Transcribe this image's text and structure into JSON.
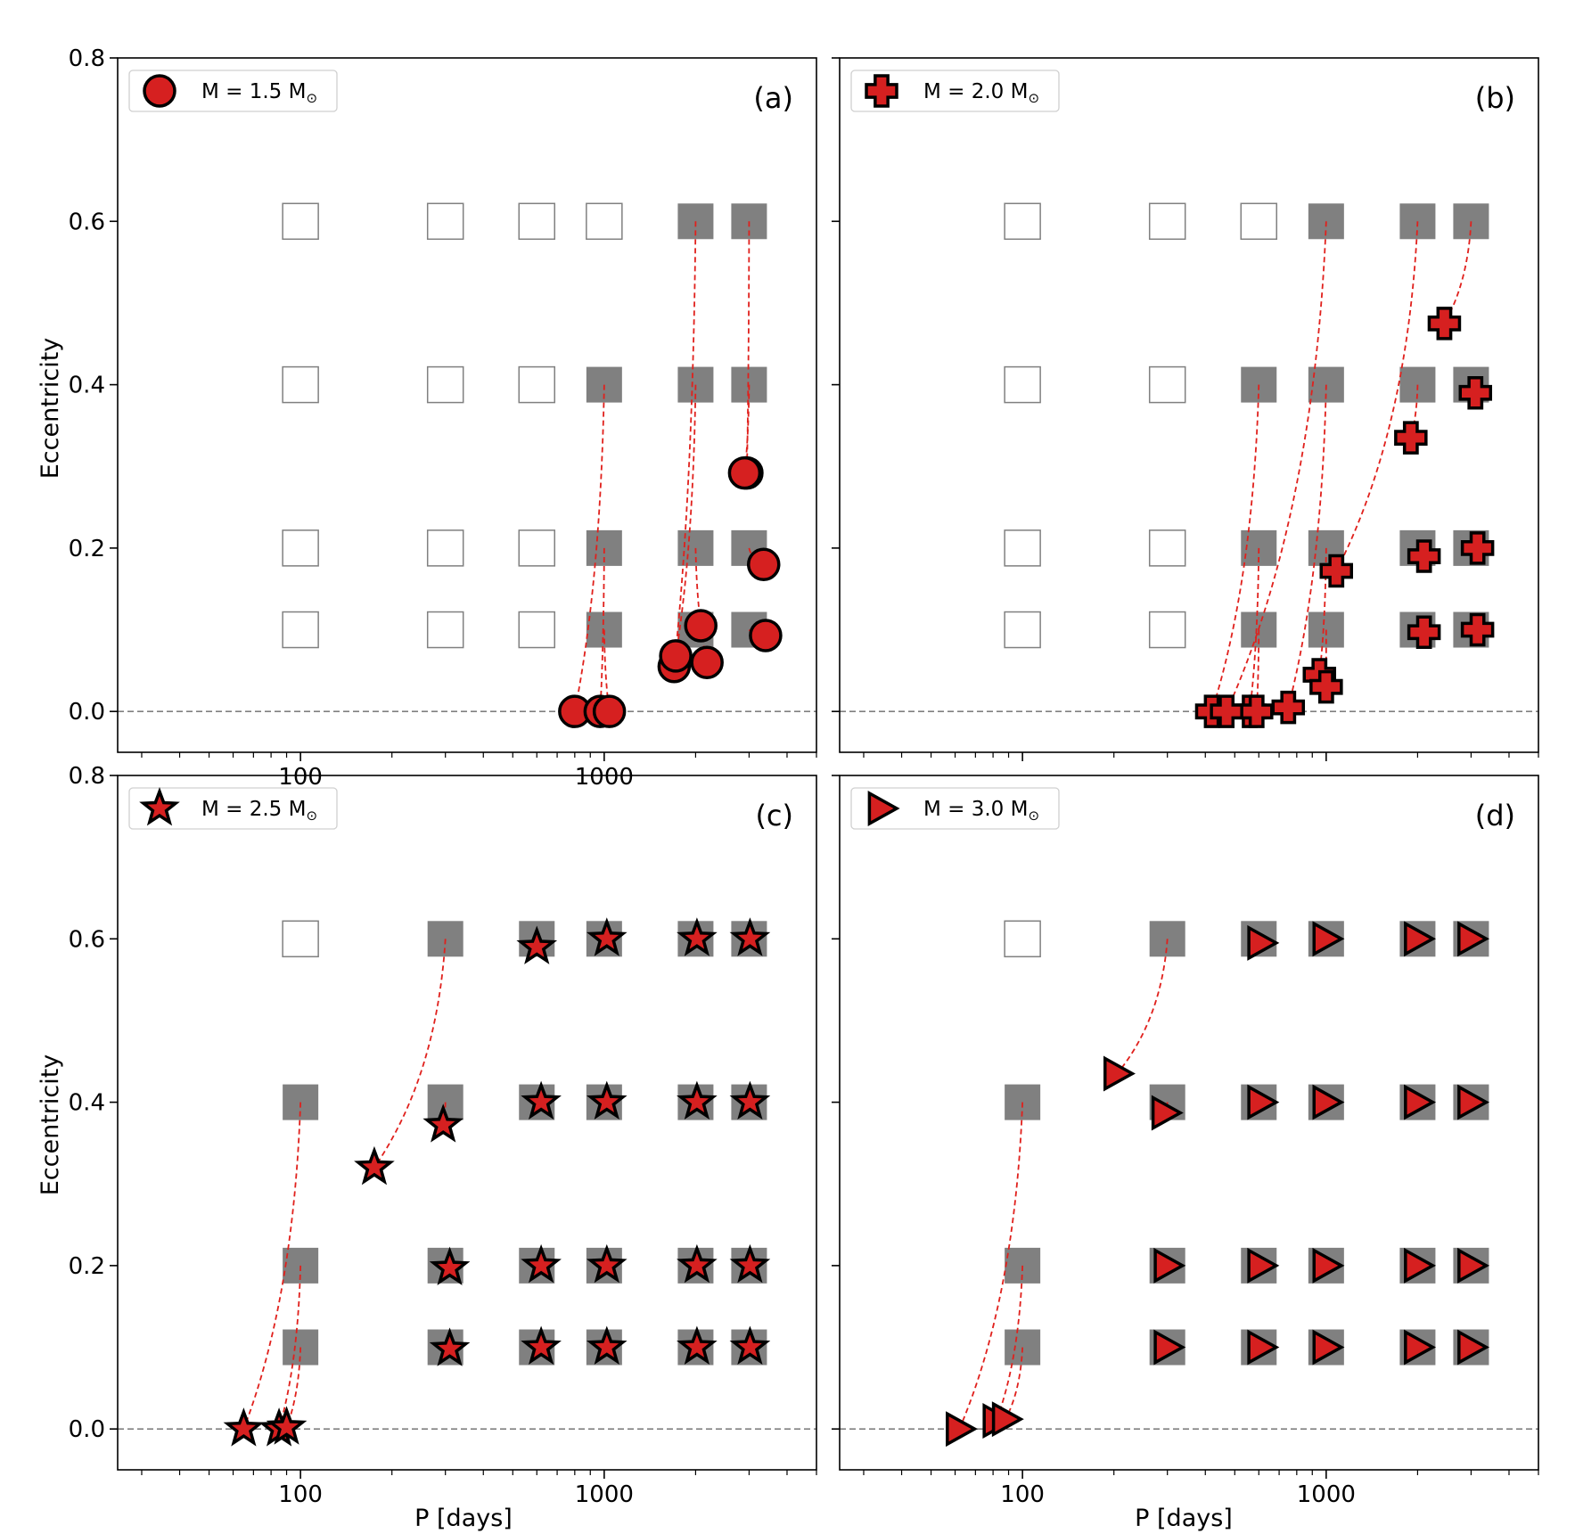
{
  "figure": {
    "xlabel": "P [days]",
    "ylabel": "Eccentricity"
  },
  "chart_data": [
    {
      "type": "scatter",
      "panel_label": "(a)",
      "legend": {
        "prefix": "M = 1.5 M",
        "subscript": "⊙",
        "placement": "top-left"
      },
      "marker": "circle",
      "x_scale": "log",
      "xlim": [
        25,
        5000
      ],
      "ylim": [
        -0.05,
        0.8
      ],
      "xticks": [
        {
          "value": 100,
          "label": "100"
        },
        {
          "value": 1000,
          "label": "1000"
        }
      ],
      "yticks": [
        {
          "value": 0.0,
          "label": "0.0"
        },
        {
          "value": 0.2,
          "label": "0.2"
        },
        {
          "value": 0.4,
          "label": "0.4"
        },
        {
          "value": 0.6,
          "label": "0.6"
        },
        {
          "value": 0.8,
          "label": "0.8"
        }
      ],
      "reference_line_y": 0.0,
      "grid_periods": [
        100,
        300,
        600,
        1000,
        2000,
        3000
      ],
      "grid_eccentricities": [
        0.1,
        0.2,
        0.4,
        0.6
      ],
      "filled_initial": [
        [
          1000,
          0.1
        ],
        [
          1000,
          0.2
        ],
        [
          1000,
          0.4
        ],
        [
          2000,
          0.1
        ],
        [
          2000,
          0.2
        ],
        [
          2000,
          0.4
        ],
        [
          2000,
          0.6
        ],
        [
          3000,
          0.1
        ],
        [
          3000,
          0.2
        ],
        [
          3000,
          0.4
        ],
        [
          3000,
          0.6
        ]
      ],
      "tracks": [
        {
          "initial": [
            1000,
            0.4
          ],
          "final": [
            800,
            0.0
          ]
        },
        {
          "initial": [
            1000,
            0.2
          ],
          "final": [
            970,
            0.0
          ]
        },
        {
          "initial": [
            1000,
            0.1
          ],
          "final": [
            1040,
            0.0
          ]
        },
        {
          "initial": [
            2000,
            0.6
          ],
          "final": [
            1700,
            0.055
          ]
        },
        {
          "initial": [
            2000,
            0.4
          ],
          "final": [
            1720,
            0.068
          ]
        },
        {
          "initial": [
            2000,
            0.2
          ],
          "final": [
            2180,
            0.06
          ]
        },
        {
          "initial": [
            2000,
            0.1
          ],
          "final": [
            2080,
            0.105
          ]
        },
        {
          "initial": [
            3000,
            0.6
          ],
          "final": [
            2950,
            0.292
          ]
        },
        {
          "initial": [
            3000,
            0.4
          ],
          "final": [
            2900,
            0.292
          ]
        },
        {
          "initial": [
            3000,
            0.2
          ],
          "final": [
            3350,
            0.18
          ]
        },
        {
          "initial": [
            3000,
            0.1
          ],
          "final": [
            3400,
            0.093
          ]
        }
      ]
    },
    {
      "type": "scatter",
      "panel_label": "(b)",
      "legend": {
        "prefix": "M = 2.0 M",
        "subscript": "⊙",
        "placement": "top-left"
      },
      "marker": "plus",
      "x_scale": "log",
      "xlim": [
        25,
        5000
      ],
      "ylim": [
        -0.05,
        0.8
      ],
      "xticks": [
        {
          "value": 100,
          "label": ""
        },
        {
          "value": 1000,
          "label": ""
        }
      ],
      "yticks": [
        {
          "value": 0.0,
          "label": ""
        },
        {
          "value": 0.2,
          "label": ""
        },
        {
          "value": 0.4,
          "label": ""
        },
        {
          "value": 0.6,
          "label": ""
        },
        {
          "value": 0.8,
          "label": ""
        }
      ],
      "reference_line_y": 0.0,
      "grid_periods": [
        100,
        300,
        600,
        1000,
        2000,
        3000
      ],
      "grid_eccentricities": [
        0.1,
        0.2,
        0.4,
        0.6
      ],
      "filled_initial": [
        [
          600,
          0.1
        ],
        [
          600,
          0.2
        ],
        [
          600,
          0.4
        ],
        [
          1000,
          0.1
        ],
        [
          1000,
          0.2
        ],
        [
          1000,
          0.4
        ],
        [
          1000,
          0.6
        ],
        [
          2000,
          0.1
        ],
        [
          2000,
          0.2
        ],
        [
          2000,
          0.4
        ],
        [
          2000,
          0.6
        ],
        [
          3000,
          0.1
        ],
        [
          3000,
          0.2
        ],
        [
          3000,
          0.4
        ],
        [
          3000,
          0.6
        ]
      ],
      "tracks": [
        {
          "initial": [
            600,
            0.4
          ],
          "final": [
            420,
            0.0
          ]
        },
        {
          "initial": [
            600,
            0.2
          ],
          "final": [
            560,
            0.0
          ]
        },
        {
          "initial": [
            600,
            0.1
          ],
          "final": [
            590,
            0.0
          ]
        },
        {
          "initial": [
            1000,
            0.6
          ],
          "final": [
            470,
            0.0
          ]
        },
        {
          "initial": [
            1000,
            0.4
          ],
          "final": [
            750,
            0.005
          ]
        },
        {
          "initial": [
            1000,
            0.2
          ],
          "final": [
            950,
            0.045
          ]
        },
        {
          "initial": [
            1000,
            0.1
          ],
          "final": [
            1000,
            0.03
          ]
        },
        {
          "initial": [
            2000,
            0.6
          ],
          "final": [
            1080,
            0.172
          ]
        },
        {
          "initial": [
            2000,
            0.4
          ],
          "final": [
            1900,
            0.335
          ]
        },
        {
          "initial": [
            2000,
            0.2
          ],
          "final": [
            2100,
            0.19
          ]
        },
        {
          "initial": [
            2000,
            0.1
          ],
          "final": [
            2100,
            0.097
          ]
        },
        {
          "initial": [
            3000,
            0.6
          ],
          "final": [
            2450,
            0.475
          ]
        },
        {
          "initial": [
            3000,
            0.4
          ],
          "final": [
            3100,
            0.39
          ]
        },
        {
          "initial": [
            3000,
            0.2
          ],
          "final": [
            3150,
            0.2
          ]
        },
        {
          "initial": [
            3000,
            0.1
          ],
          "final": [
            3150,
            0.1
          ]
        }
      ]
    },
    {
      "type": "scatter",
      "panel_label": "(c)",
      "legend": {
        "prefix": "M = 2.5 M",
        "subscript": "⊙",
        "placement": "top-left"
      },
      "marker": "star",
      "x_scale": "log",
      "xlim": [
        25,
        5000
      ],
      "ylim": [
        -0.05,
        0.8
      ],
      "xticks": [
        {
          "value": 100,
          "label": "100"
        },
        {
          "value": 1000,
          "label": "1000"
        }
      ],
      "yticks": [
        {
          "value": 0.0,
          "label": "0.0"
        },
        {
          "value": 0.2,
          "label": "0.2"
        },
        {
          "value": 0.4,
          "label": "0.4"
        },
        {
          "value": 0.6,
          "label": "0.6"
        },
        {
          "value": 0.8,
          "label": "0.8"
        }
      ],
      "reference_line_y": 0.0,
      "grid_periods": [
        100,
        300,
        600,
        1000,
        2000,
        3000
      ],
      "grid_eccentricities": [
        0.1,
        0.2,
        0.4,
        0.6
      ],
      "filled_initial": [
        [
          100,
          0.1
        ],
        [
          100,
          0.2
        ],
        [
          100,
          0.4
        ],
        [
          300,
          0.1
        ],
        [
          300,
          0.2
        ],
        [
          300,
          0.4
        ],
        [
          300,
          0.6
        ],
        [
          600,
          0.1
        ],
        [
          600,
          0.2
        ],
        [
          600,
          0.4
        ],
        [
          600,
          0.6
        ],
        [
          1000,
          0.1
        ],
        [
          1000,
          0.2
        ],
        [
          1000,
          0.4
        ],
        [
          1000,
          0.6
        ],
        [
          2000,
          0.1
        ],
        [
          2000,
          0.2
        ],
        [
          2000,
          0.4
        ],
        [
          2000,
          0.6
        ],
        [
          3000,
          0.1
        ],
        [
          3000,
          0.2
        ],
        [
          3000,
          0.4
        ],
        [
          3000,
          0.6
        ]
      ],
      "tracks": [
        {
          "initial": [
            100,
            0.4
          ],
          "final": [
            65,
            0.0
          ]
        },
        {
          "initial": [
            100,
            0.2
          ],
          "final": [
            85,
            0.0
          ]
        },
        {
          "initial": [
            100,
            0.1
          ],
          "final": [
            90,
            0.002
          ]
        },
        {
          "initial": [
            300,
            0.6
          ],
          "final": [
            175,
            0.32
          ]
        },
        {
          "initial": [
            300,
            0.4
          ],
          "final": [
            295,
            0.372
          ]
        },
        {
          "initial": [
            300,
            0.2
          ],
          "final": [
            310,
            0.197
          ]
        },
        {
          "initial": [
            300,
            0.1
          ],
          "final": [
            310,
            0.098
          ]
        },
        {
          "initial": [
            600,
            0.6
          ],
          "final": [
            600,
            0.59
          ]
        },
        {
          "initial": [
            600,
            0.4
          ],
          "final": [
            620,
            0.4
          ]
        },
        {
          "initial": [
            600,
            0.2
          ],
          "final": [
            620,
            0.2
          ]
        },
        {
          "initial": [
            600,
            0.1
          ],
          "final": [
            620,
            0.1
          ]
        },
        {
          "initial": [
            1000,
            0.6
          ],
          "final": [
            1020,
            0.6
          ]
        },
        {
          "initial": [
            1000,
            0.4
          ],
          "final": [
            1020,
            0.4
          ]
        },
        {
          "initial": [
            1000,
            0.2
          ],
          "final": [
            1020,
            0.2
          ]
        },
        {
          "initial": [
            1000,
            0.1
          ],
          "final": [
            1020,
            0.1
          ]
        },
        {
          "initial": [
            2000,
            0.6
          ],
          "final": [
            2020,
            0.6
          ]
        },
        {
          "initial": [
            2000,
            0.4
          ],
          "final": [
            2020,
            0.4
          ]
        },
        {
          "initial": [
            2000,
            0.2
          ],
          "final": [
            2020,
            0.2
          ]
        },
        {
          "initial": [
            2000,
            0.1
          ],
          "final": [
            2020,
            0.1
          ]
        },
        {
          "initial": [
            3000,
            0.6
          ],
          "final": [
            3020,
            0.6
          ]
        },
        {
          "initial": [
            3000,
            0.4
          ],
          "final": [
            3020,
            0.4
          ]
        },
        {
          "initial": [
            3000,
            0.2
          ],
          "final": [
            3020,
            0.2
          ]
        },
        {
          "initial": [
            3000,
            0.1
          ],
          "final": [
            3020,
            0.1
          ]
        }
      ]
    },
    {
      "type": "scatter",
      "panel_label": "(d)",
      "legend": {
        "prefix": "M = 3.0 M",
        "subscript": "⊙",
        "placement": "top-left"
      },
      "marker": "triangle-right",
      "x_scale": "log",
      "xlim": [
        25,
        5000
      ],
      "ylim": [
        -0.05,
        0.8
      ],
      "xticks": [
        {
          "value": 100,
          "label": "100"
        },
        {
          "value": 1000,
          "label": "1000"
        }
      ],
      "yticks": [
        {
          "value": 0.0,
          "label": ""
        },
        {
          "value": 0.2,
          "label": ""
        },
        {
          "value": 0.4,
          "label": ""
        },
        {
          "value": 0.6,
          "label": ""
        },
        {
          "value": 0.8,
          "label": ""
        }
      ],
      "reference_line_y": 0.0,
      "grid_periods": [
        100,
        300,
        600,
        1000,
        2000,
        3000
      ],
      "grid_eccentricities": [
        0.1,
        0.2,
        0.4,
        0.6
      ],
      "filled_initial": [
        [
          100,
          0.1
        ],
        [
          100,
          0.2
        ],
        [
          100,
          0.4
        ],
        [
          300,
          0.1
        ],
        [
          300,
          0.2
        ],
        [
          300,
          0.4
        ],
        [
          300,
          0.6
        ],
        [
          600,
          0.1
        ],
        [
          600,
          0.2
        ],
        [
          600,
          0.4
        ],
        [
          600,
          0.6
        ],
        [
          1000,
          0.1
        ],
        [
          1000,
          0.2
        ],
        [
          1000,
          0.4
        ],
        [
          1000,
          0.6
        ],
        [
          2000,
          0.1
        ],
        [
          2000,
          0.2
        ],
        [
          2000,
          0.4
        ],
        [
          2000,
          0.6
        ],
        [
          3000,
          0.1
        ],
        [
          3000,
          0.2
        ],
        [
          3000,
          0.4
        ],
        [
          3000,
          0.6
        ]
      ],
      "tracks": [
        {
          "initial": [
            100,
            0.4
          ],
          "final": [
            62,
            0.0
          ]
        },
        {
          "initial": [
            100,
            0.2
          ],
          "final": [
            82,
            0.01
          ]
        },
        {
          "initial": [
            100,
            0.1
          ],
          "final": [
            88,
            0.012
          ]
        },
        {
          "initial": [
            300,
            0.6
          ],
          "final": [
            205,
            0.435
          ]
        },
        {
          "initial": [
            300,
            0.4
          ],
          "final": [
            295,
            0.387
          ]
        },
        {
          "initial": [
            300,
            0.2
          ],
          "final": [
            300,
            0.2
          ]
        },
        {
          "initial": [
            300,
            0.1
          ],
          "final": [
            300,
            0.1
          ]
        },
        {
          "initial": [
            600,
            0.6
          ],
          "final": [
            610,
            0.595
          ]
        },
        {
          "initial": [
            600,
            0.4
          ],
          "final": [
            610,
            0.4
          ]
        },
        {
          "initial": [
            600,
            0.2
          ],
          "final": [
            610,
            0.2
          ]
        },
        {
          "initial": [
            600,
            0.1
          ],
          "final": [
            610,
            0.1
          ]
        },
        {
          "initial": [
            1000,
            0.6
          ],
          "final": [
            1000,
            0.6
          ]
        },
        {
          "initial": [
            1000,
            0.4
          ],
          "final": [
            1000,
            0.4
          ]
        },
        {
          "initial": [
            1000,
            0.2
          ],
          "final": [
            1000,
            0.2
          ]
        },
        {
          "initial": [
            1000,
            0.1
          ],
          "final": [
            1000,
            0.1
          ]
        },
        {
          "initial": [
            2000,
            0.6
          ],
          "final": [
            2000,
            0.6
          ]
        },
        {
          "initial": [
            2000,
            0.4
          ],
          "final": [
            2000,
            0.4
          ]
        },
        {
          "initial": [
            2000,
            0.2
          ],
          "final": [
            2000,
            0.2
          ]
        },
        {
          "initial": [
            2000,
            0.1
          ],
          "final": [
            2000,
            0.1
          ]
        },
        {
          "initial": [
            3000,
            0.6
          ],
          "final": [
            3000,
            0.6
          ]
        },
        {
          "initial": [
            3000,
            0.4
          ],
          "final": [
            3000,
            0.4
          ]
        },
        {
          "initial": [
            3000,
            0.2
          ],
          "final": [
            3000,
            0.2
          ]
        },
        {
          "initial": [
            3000,
            0.1
          ],
          "final": [
            3000,
            0.1
          ]
        }
      ]
    }
  ],
  "colors": {
    "marker_fill": "#d62020",
    "marker_edge": "#000000",
    "track_line": "#e0201c",
    "filled_square": "#808080",
    "empty_square_edge": "#808080",
    "reference_line": "#808080"
  }
}
